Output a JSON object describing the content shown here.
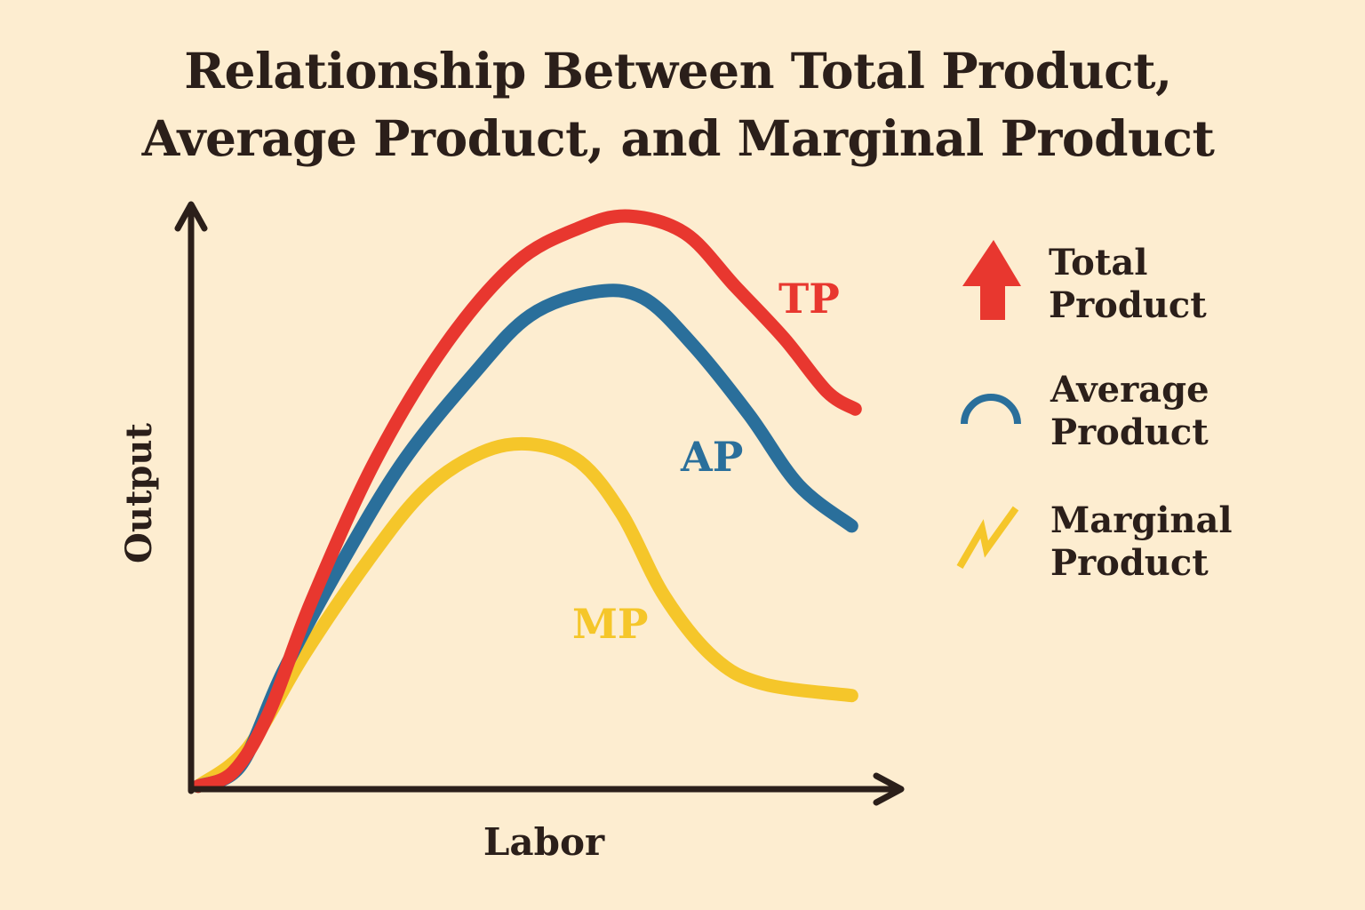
{
  "chart_data": {
    "type": "line",
    "title": "Relationship Between Total Product, Average Product, and Marginal Product",
    "title_lines": [
      "Relationship Between Total Product,",
      "Average Product, and Marginal Product"
    ],
    "xlabel": "Labor",
    "ylabel": "Output",
    "axis_ticks": "none",
    "grid": false,
    "legend_placement": "right",
    "series": [
      {
        "name": "Total Product",
        "label": "TP",
        "color": "#e8372f",
        "legend_icon": "arrow-up-icon",
        "x": [
          0.1,
          0.6,
          1.1,
          1.7,
          2.6,
          3.6,
          4.6,
          5.5,
          6.2,
          7.0,
          7.7,
          8.4,
          9.0,
          9.4
        ],
        "y": [
          0.05,
          0.3,
          1.3,
          3.2,
          5.6,
          7.6,
          9.0,
          9.6,
          9.8,
          9.5,
          8.6,
          7.7,
          6.8,
          6.5
        ]
      },
      {
        "name": "Average Product",
        "label": "AP",
        "color": "#2a6f9b",
        "legend_icon": "arch-icon",
        "x": [
          0.1,
          0.7,
          1.3,
          2.1,
          3.0,
          4.0,
          4.8,
          5.7,
          6.4,
          7.1,
          7.9,
          8.6,
          9.35
        ],
        "y": [
          0.05,
          0.4,
          2.0,
          3.8,
          5.6,
          7.1,
          8.1,
          8.5,
          8.4,
          7.6,
          6.4,
          5.2,
          4.5
        ]
      },
      {
        "name": "Marginal Product",
        "label": "MP",
        "color": "#f5c62a",
        "legend_icon": "zigzag-icon",
        "x": [
          0.1,
          0.8,
          1.6,
          2.5,
          3.3,
          4.1,
          4.8,
          5.5,
          6.1,
          6.7,
          7.4,
          8.1,
          9.35
        ],
        "y": [
          0.05,
          0.7,
          2.3,
          3.9,
          5.1,
          5.75,
          5.9,
          5.6,
          4.7,
          3.3,
          2.25,
          1.8,
          1.6
        ]
      }
    ]
  },
  "legend": [
    {
      "line1": "Total",
      "line2": "Product"
    },
    {
      "line1": "Average",
      "line2": "Product"
    },
    {
      "line1": "Marginal",
      "line2": "Product"
    }
  ],
  "colors": {
    "background": "#fdedd0",
    "axis": "#2b1f1a"
  }
}
